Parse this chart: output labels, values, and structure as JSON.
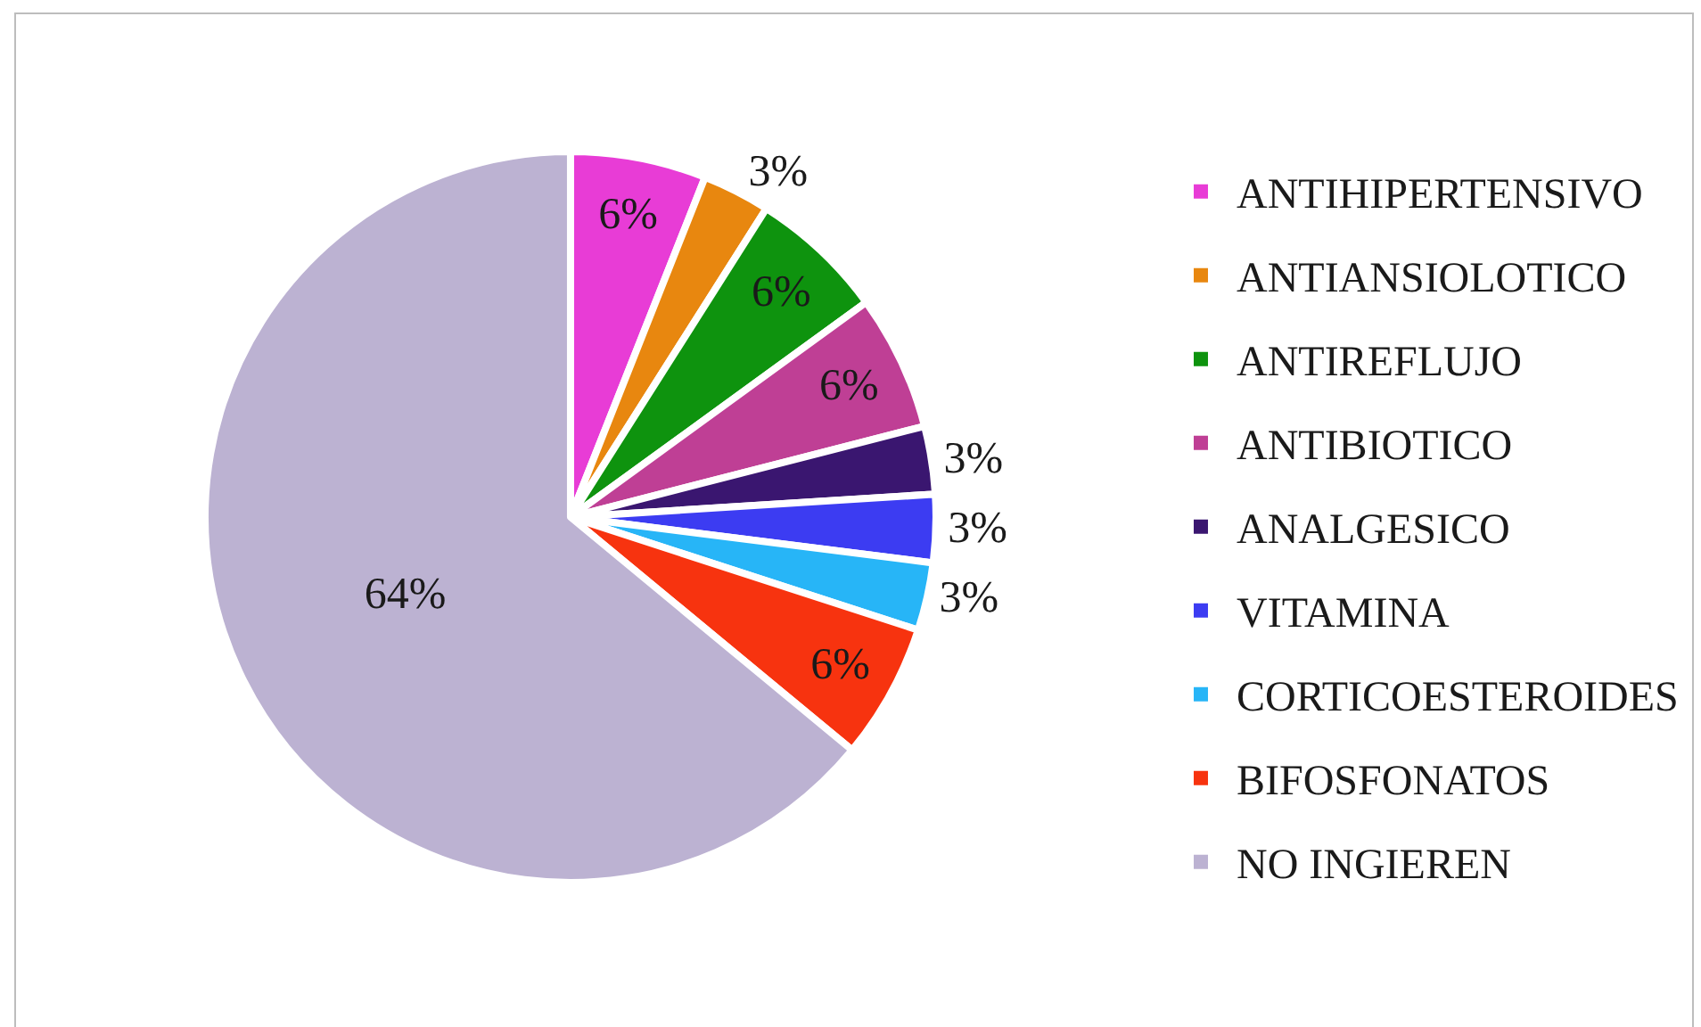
{
  "chart_data": {
    "type": "pie",
    "categories": [
      "ANTIHIPERTENSIVO",
      "ANTIANSIOLOTICO",
      "ANTIREFLUJO",
      "ANTIBIOTICO",
      "ANALGESICO",
      "VITAMINA",
      "CORTICOESTEROIDES",
      "BIFOSFONATOS",
      "NO INGIEREN"
    ],
    "values": [
      6,
      3,
      6,
      6,
      3,
      3,
      3,
      6,
      64
    ],
    "colors": [
      "#e83cd6",
      "#e8870f",
      "#0e930e",
      "#bf3f95",
      "#3a1670",
      "#3c3cf2",
      "#27b5f7",
      "#f7330f",
      "#bcb2d2"
    ],
    "value_labels": [
      "6%",
      "3%",
      "6%",
      "6%",
      "3%",
      "3%",
      "3%",
      "6%",
      "64%"
    ],
    "legend": "right"
  }
}
